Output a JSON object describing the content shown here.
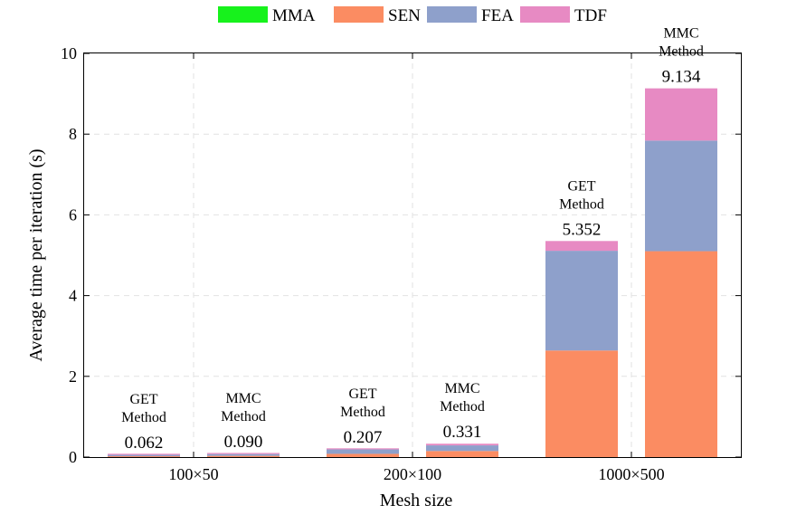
{
  "chart_data": {
    "type": "bar",
    "stacked": true,
    "title": "",
    "xlabel": "Mesh size",
    "ylabel": "Average time per iteration (s)",
    "ylim": [
      0,
      10
    ],
    "yticks": [
      0,
      2,
      4,
      6,
      8,
      10
    ],
    "grid": true,
    "legend_position": "top",
    "groups": [
      "100×50",
      "200×100",
      "1000×500"
    ],
    "series": [
      {
        "name": "MMA",
        "color": "#17f21c"
      },
      {
        "name": "SEN",
        "color": "#fb8c62"
      },
      {
        "name": "FEA",
        "color": "#8ea0cb"
      },
      {
        "name": "TDF",
        "color": "#e78ac3"
      }
    ],
    "bars": [
      {
        "group": "100×50",
        "method_line1": "GET",
        "method_line2": "Method",
        "total": "0.062",
        "values": {
          "MMA": 0.0,
          "SEN": 0.02,
          "FEA": 0.035,
          "TDF": 0.007
        }
      },
      {
        "group": "100×50",
        "method_line1": "MMC",
        "method_line2": "Method",
        "total": "0.090",
        "values": {
          "MMA": 0.0,
          "SEN": 0.03,
          "FEA": 0.045,
          "TDF": 0.015
        }
      },
      {
        "group": "200×100",
        "method_line1": "GET",
        "method_line2": "Method",
        "total": "0.207",
        "values": {
          "MMA": 0.0,
          "SEN": 0.08,
          "FEA": 0.11,
          "TDF": 0.017
        }
      },
      {
        "group": "200×100",
        "method_line1": "MMC",
        "method_line2": "Method",
        "total": "0.331",
        "values": {
          "MMA": 0.0,
          "SEN": 0.15,
          "FEA": 0.14,
          "TDF": 0.041
        }
      },
      {
        "group": "1000×500",
        "method_line1": "GET",
        "method_line2": "Method",
        "total": "5.352",
        "values": {
          "MMA": 0.0,
          "SEN": 2.64,
          "FEA": 2.47,
          "TDF": 0.242
        }
      },
      {
        "group": "1000×500",
        "method_line1": "MMC",
        "method_line2": "Method",
        "total": "9.134",
        "values": {
          "MMA": 0.0,
          "SEN": 5.1,
          "FEA": 2.74,
          "TDF": 1.294
        }
      }
    ]
  }
}
